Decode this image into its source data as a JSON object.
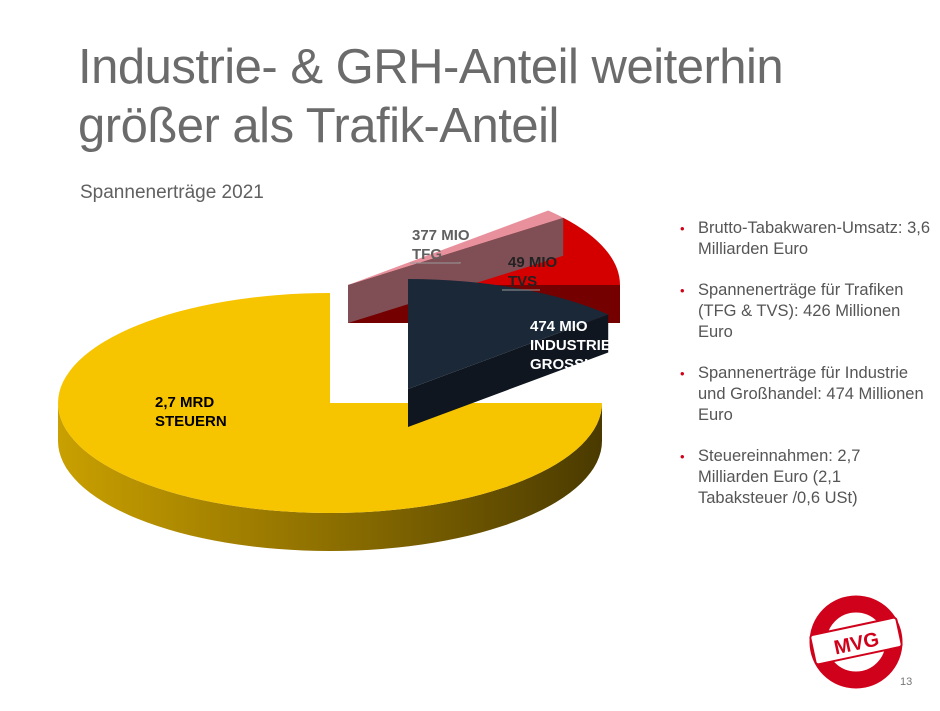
{
  "slide": {
    "title_line1": "Industrie- & GRH-Anteil weiterhin",
    "title_line2": "größer als Trafik-Anteil",
    "subtitle": "Spannenerträge 2021",
    "page_number": "13",
    "logo_text": "MVG"
  },
  "bullets": [
    "Brutto-Tabakwaren-Umsatz: 3,6 Milliarden Euro",
    "Spannenerträge für Trafiken (TFG & TVS): 426 Millionen Euro",
    "Spannenerträge für Industrie und Großhandel: 474 Millionen Euro",
    "Steuereinnahmen: 2,7 Milliarden Euro (2,1 Tabaksteuer /0,6 USt)"
  ],
  "chart_data": {
    "type": "pie",
    "title": "Spannenerträge 2021",
    "unit": "Mio. Euro",
    "slices": [
      {
        "name": "STEUERN",
        "value": 2700,
        "label_line1": "2,7 MRD",
        "label_line2": "STEUERN",
        "color": "#f7c400",
        "exploded": false
      },
      {
        "name": "TFG",
        "value": 377,
        "label_line1": "377 MIO",
        "label_line2": "TFG",
        "color": "#d40000",
        "exploded": true
      },
      {
        "name": "TVS",
        "value": 49,
        "label_line1": "49 MIO",
        "label_line2": "TVS",
        "color": "#e8909c",
        "exploded": true
      },
      {
        "name": "INDUSTRIE & GROSSHANDEL",
        "value": 474,
        "label_line1": "474 MIO",
        "label_line2": "INDUSTRIE &",
        "label_line3": "GROSSHANDEL",
        "color": "#1b2838",
        "exploded": true
      }
    ]
  },
  "colors": {
    "accent": "#d0021b",
    "title_text": "#6b6b6b"
  }
}
